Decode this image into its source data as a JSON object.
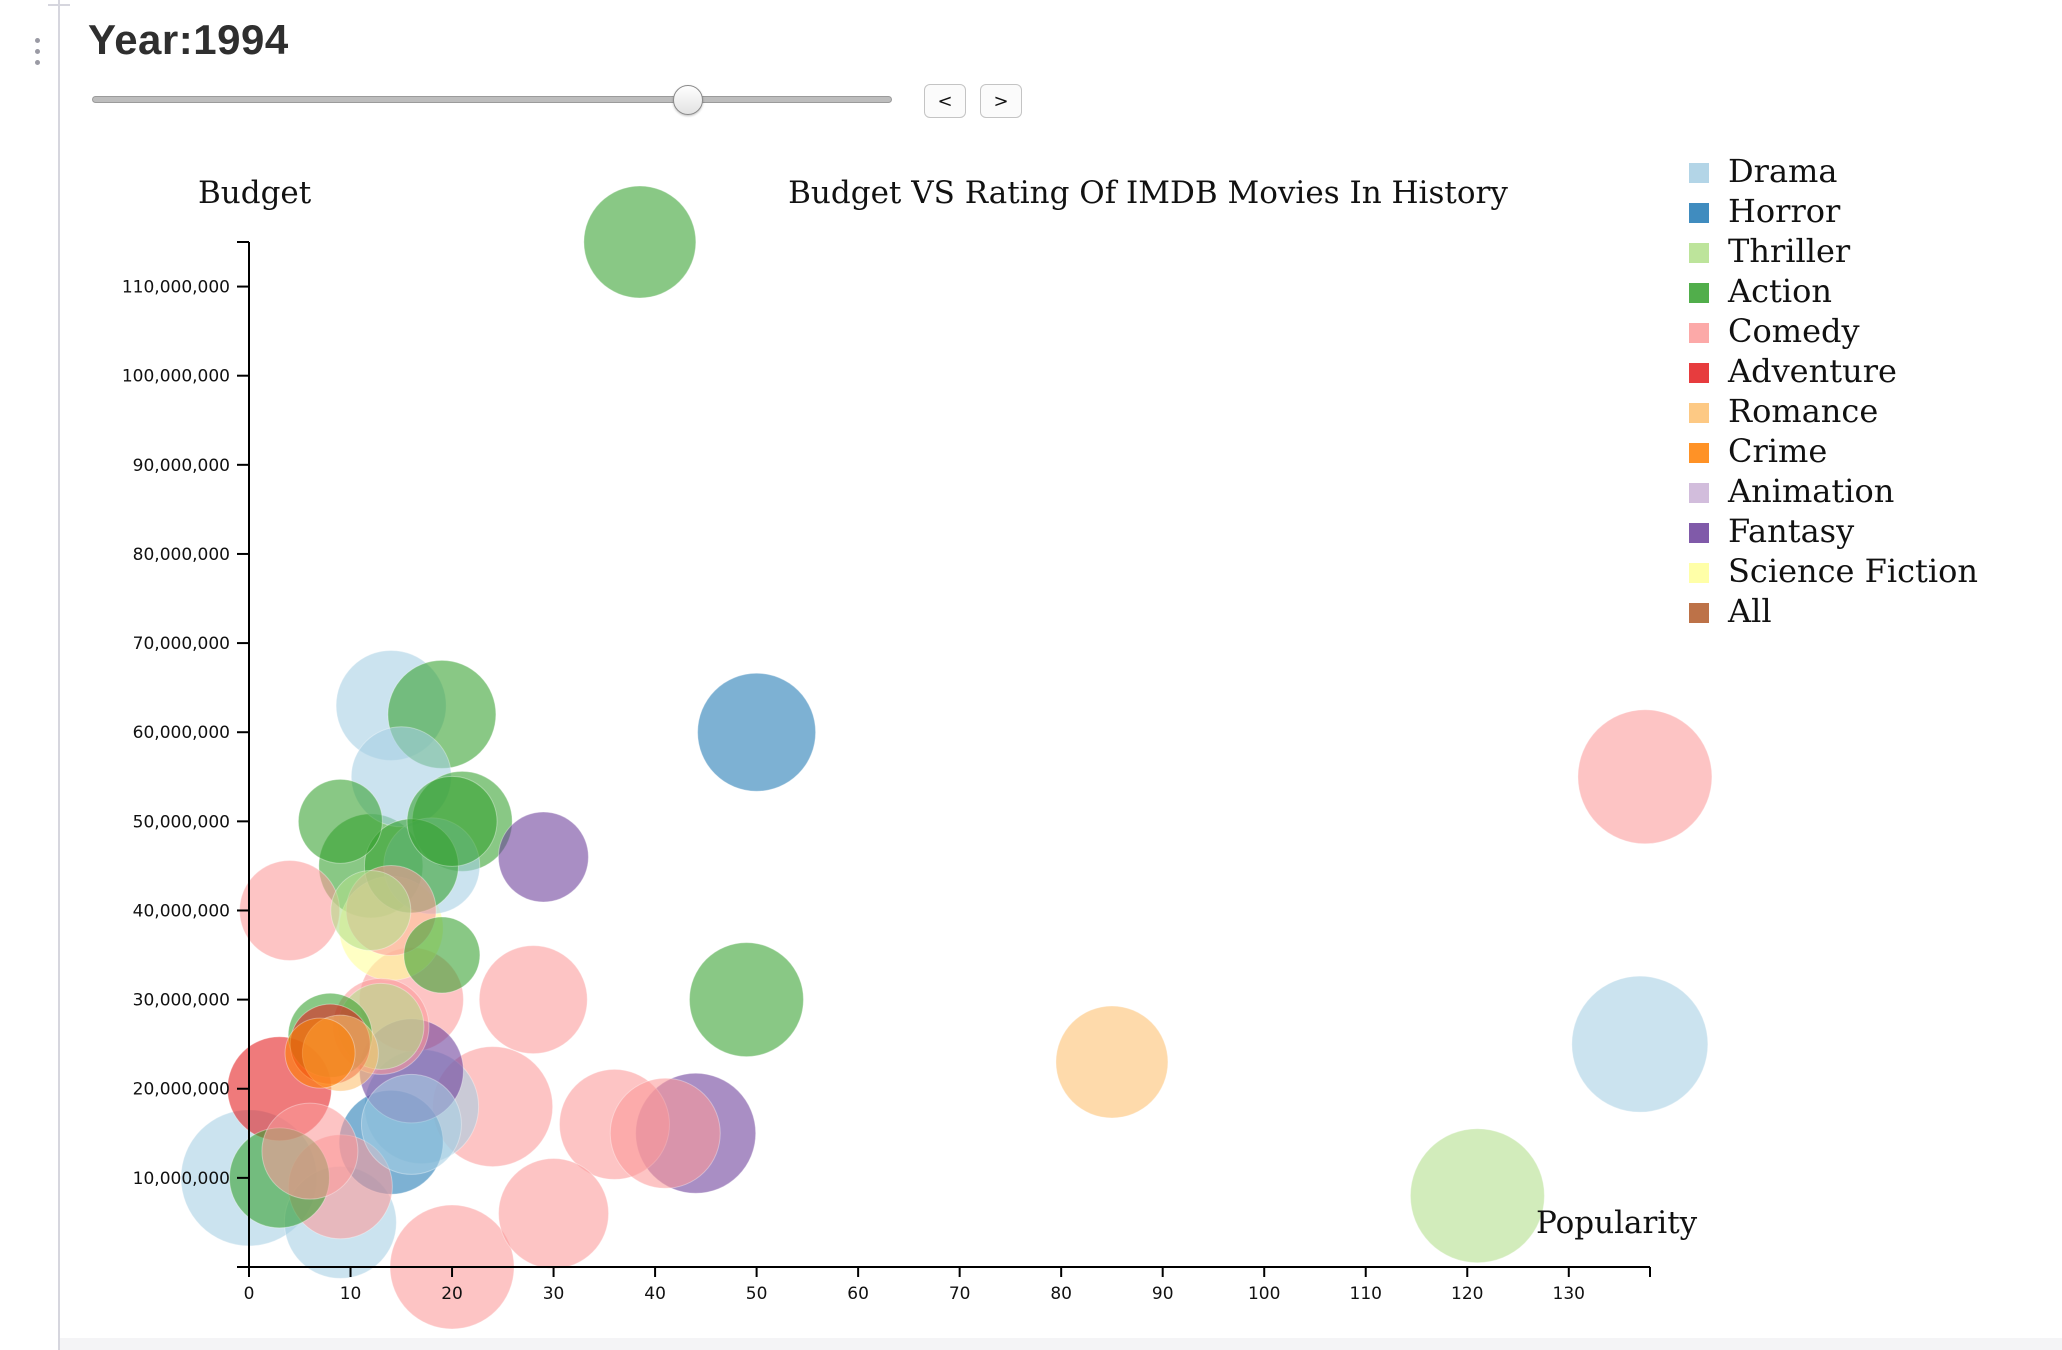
{
  "header": {
    "year_title": "Year:1994",
    "prev_label": "<",
    "next_label": ">"
  },
  "slider": {
    "position_fraction": 0.745
  },
  "chart_data": {
    "type": "scatter",
    "title": "Budget VS Rating Of IMDB Movies In History",
    "xlabel": "Popularity",
    "ylabel": "Budget",
    "xlim": [
      0,
      138
    ],
    "ylim": [
      0,
      115000000
    ],
    "x_ticks": [
      0,
      10,
      20,
      30,
      40,
      50,
      60,
      70,
      80,
      90,
      100,
      110,
      120,
      130
    ],
    "x_tick_labels": [
      "0",
      "10",
      "20",
      "30",
      "40",
      "50",
      "60",
      "70",
      "80",
      "90",
      "100",
      "110",
      "120",
      "130"
    ],
    "y_ticks": [
      10000000,
      20000000,
      30000000,
      40000000,
      50000000,
      60000000,
      70000000,
      80000000,
      90000000,
      100000000,
      110000000
    ],
    "y_tick_labels": [
      "10,000,000",
      "20,000,000",
      "30,000,000",
      "40,000,000",
      "50,000,000",
      "60,000,000",
      "70,000,000",
      "80,000,000",
      "90,000,000",
      "100,000,000",
      "110,000,000"
    ],
    "grid": false,
    "legend_position": "top-right",
    "series": [
      {
        "name": "Drama",
        "color": "#a6cee3",
        "points": [
          {
            "x": 0,
            "y": 10000000,
            "r": 68
          },
          {
            "x": 9,
            "y": 5000000,
            "r": 56
          },
          {
            "x": 14,
            "y": 63000000,
            "r": 55
          },
          {
            "x": 15,
            "y": 55000000,
            "r": 50
          },
          {
            "x": 18,
            "y": 45000000,
            "r": 48
          },
          {
            "x": 17,
            "y": 18000000,
            "r": 57
          },
          {
            "x": 16,
            "y": 16000000,
            "r": 50
          },
          {
            "x": 137,
            "y": 25000000,
            "r": 68
          }
        ]
      },
      {
        "name": "Horror",
        "color": "#1f78b4",
        "points": [
          {
            "x": 50,
            "y": 60000000,
            "r": 59
          },
          {
            "x": 14,
            "y": 14000000,
            "r": 52
          }
        ]
      },
      {
        "name": "Thriller",
        "color": "#b2df8a",
        "points": [
          {
            "x": 121,
            "y": 8000000,
            "r": 67
          },
          {
            "x": 13,
            "y": 27000000,
            "r": 43
          },
          {
            "x": 12,
            "y": 40000000,
            "r": 40
          }
        ]
      },
      {
        "name": "Action",
        "color": "#33a02c",
        "points": [
          {
            "x": 38.5,
            "y": 115000000,
            "r": 56
          },
          {
            "x": 19,
            "y": 62000000,
            "r": 54
          },
          {
            "x": 9,
            "y": 50000000,
            "r": 42
          },
          {
            "x": 20,
            "y": 50000000,
            "r": 45
          },
          {
            "x": 21,
            "y": 50000000,
            "r": 50
          },
          {
            "x": 12,
            "y": 45000000,
            "r": 52
          },
          {
            "x": 16,
            "y": 45000000,
            "r": 47
          },
          {
            "x": 19,
            "y": 35000000,
            "r": 38
          },
          {
            "x": 49,
            "y": 30000000,
            "r": 57
          },
          {
            "x": 8,
            "y": 26000000,
            "r": 42
          },
          {
            "x": 3,
            "y": 10000000,
            "r": 50
          }
        ]
      },
      {
        "name": "Comedy",
        "color": "#fb9a99",
        "points": [
          {
            "x": 137.5,
            "y": 55000000,
            "r": 67
          },
          {
            "x": 4,
            "y": 40000000,
            "r": 50
          },
          {
            "x": 14,
            "y": 40000000,
            "r": 45
          },
          {
            "x": 16,
            "y": 30000000,
            "r": 52
          },
          {
            "x": 28,
            "y": 30000000,
            "r": 54
          },
          {
            "x": 13,
            "y": 27000000,
            "r": 48
          },
          {
            "x": 24,
            "y": 18000000,
            "r": 60
          },
          {
            "x": 36,
            "y": 16000000,
            "r": 55
          },
          {
            "x": 41,
            "y": 15000000,
            "r": 55
          },
          {
            "x": 6,
            "y": 13000000,
            "r": 48
          },
          {
            "x": 9,
            "y": 9000000,
            "r": 52
          },
          {
            "x": 30,
            "y": 6000000,
            "r": 55
          },
          {
            "x": 20,
            "y": 0,
            "r": 62
          }
        ]
      },
      {
        "name": "Adventure",
        "color": "#e31a1c",
        "points": [
          {
            "x": 3,
            "y": 20000000,
            "r": 52
          },
          {
            "x": 8,
            "y": 25000000,
            "r": 40
          }
        ]
      },
      {
        "name": "Romance",
        "color": "#fdbf6f",
        "points": [
          {
            "x": 85,
            "y": 23000000,
            "r": 56
          },
          {
            "x": 9,
            "y": 24000000,
            "r": 38
          }
        ]
      },
      {
        "name": "Crime",
        "color": "#ff7f00",
        "points": [
          {
            "x": 7,
            "y": 24000000,
            "r": 35
          }
        ]
      },
      {
        "name": "Animation",
        "color": "#cab2d6",
        "points": []
      },
      {
        "name": "Fantasy",
        "color": "#6a3d9a",
        "points": [
          {
            "x": 29,
            "y": 46000000,
            "r": 45
          },
          {
            "x": 44,
            "y": 15000000,
            "r": 60
          },
          {
            "x": 16,
            "y": 22000000,
            "r": 52
          }
        ]
      },
      {
        "name": "Science Fiction",
        "color": "#ffff99",
        "points": [
          {
            "x": 14,
            "y": 38000000,
            "r": 52
          }
        ]
      },
      {
        "name": "All",
        "color": "#b15928",
        "points": []
      }
    ]
  }
}
